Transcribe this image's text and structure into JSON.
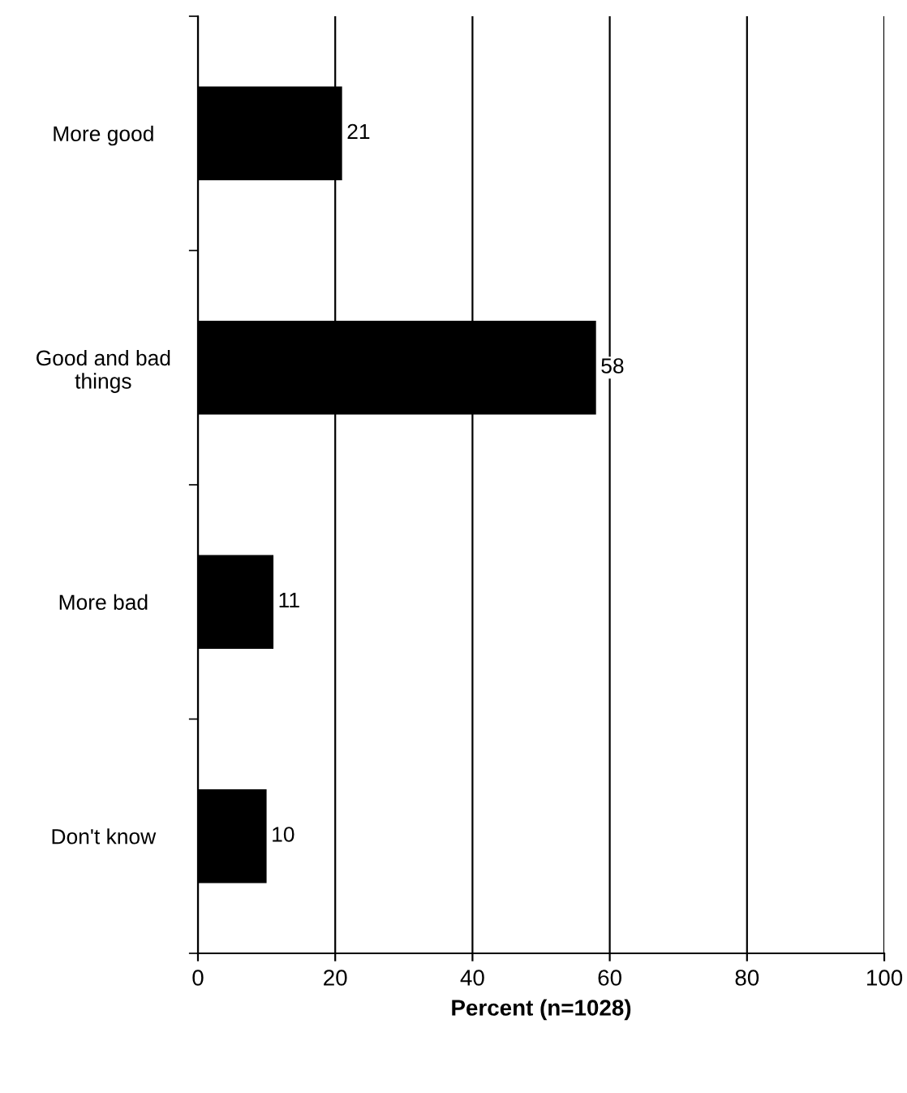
{
  "chart_data": {
    "type": "bar",
    "orientation": "horizontal",
    "categories": [
      "More good",
      "Good and bad\nthings",
      "More bad",
      "Don't know"
    ],
    "values": [
      21,
      58,
      11,
      10
    ],
    "color": "#000000",
    "xlabel": "Percent (n=1028)",
    "xlim": [
      0,
      100
    ],
    "xticks": [
      0,
      20,
      40,
      60,
      80,
      100
    ],
    "grid": "x",
    "data_labels": true
  }
}
